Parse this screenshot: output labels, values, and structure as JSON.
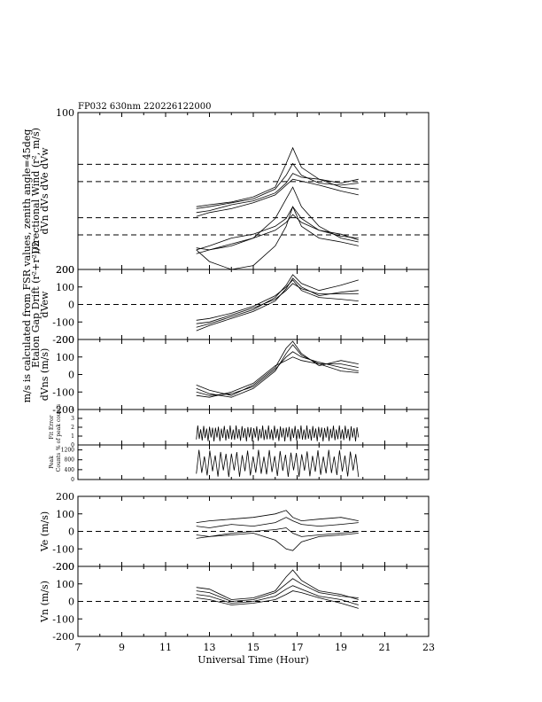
{
  "title": "FP032 630nm 220226122000",
  "chart_data": {
    "type": "line",
    "xlabel": "Universal Time (Hour)",
    "xlim": [
      7,
      23
    ],
    "x_ticks": [
      "7",
      "9",
      "11",
      "13",
      "15",
      "17",
      "19",
      "21",
      "23"
    ],
    "left_outer_label": "m/s is calculated from FSR values, zenith angle=45deg",
    "panels": [
      {
        "id": "dirwind",
        "ylabel": "dVn  dVs   dVe dVw",
        "ylabel2": "Directional Wind (r², m/s)",
        "y_ticks": [
          "100",
          "200"
        ],
        "dashed": [
          0.33,
          0.44,
          0.67,
          0.78
        ],
        "series": [
          {
            "x": [
              12.4,
              13,
              14,
              15,
              16,
              16.5,
              16.8,
              17.2,
              18,
              19,
              19.8
            ],
            "y": [
              -40,
              -35,
              -28,
              -15,
              10,
              70,
              110,
              60,
              30,
              10,
              5
            ]
          },
          {
            "x": [
              12.4,
              13,
              14,
              15,
              16,
              16.5,
              16.8,
              17.2,
              18,
              19,
              19.8
            ],
            "y": [
              -45,
              -40,
              -30,
              -20,
              5,
              40,
              70,
              40,
              20,
              15,
              20
            ]
          },
          {
            "x": [
              12.4,
              13,
              14,
              15,
              16,
              16.5,
              16.8,
              17.2,
              18,
              19,
              19.8
            ],
            "y": [
              -55,
              -50,
              -35,
              -25,
              -5,
              20,
              45,
              35,
              30,
              20,
              30
            ]
          },
          {
            "x": [
              12.4,
              13,
              14,
              15,
              16,
              16.5,
              16.8,
              17.2,
              18,
              19,
              19.8
            ],
            "y": [
              -65,
              -55,
              -45,
              -30,
              -10,
              15,
              30,
              25,
              15,
              0,
              -10
            ]
          },
          {
            "x": [
              12.4,
              13,
              14,
              15,
              16,
              16.5,
              16.8,
              17.2,
              18,
              19,
              19.8
            ],
            "y": [
              -150,
              -140,
              -120,
              -110,
              -90,
              -70,
              -40,
              -70,
              -100,
              -115,
              -120
            ]
          },
          {
            "x": [
              12.4,
              13,
              14,
              15,
              16,
              16.5,
              16.8,
              17.2,
              18,
              19,
              19.8
            ],
            "y": [
              -160,
              -150,
              -135,
              -120,
              -100,
              -80,
              -60,
              -80,
              -100,
              -110,
              -125
            ]
          },
          {
            "x": [
              12.4,
              13,
              14,
              15,
              16,
              16.5,
              16.8,
              17.2,
              18,
              19,
              19.8
            ],
            "y": [
              -145,
              -150,
              -140,
              -120,
              -70,
              -20,
              10,
              -40,
              -90,
              -120,
              -130
            ]
          },
          {
            "x": [
              12.4,
              13,
              14,
              15,
              16,
              16.5,
              16.8,
              17.2,
              18,
              19,
              19.8
            ],
            "y": [
              -150,
              -180,
              -200,
              -190,
              -140,
              -90,
              -40,
              -90,
              -120,
              -130,
              -140
            ]
          }
        ]
      },
      {
        "id": "dvew",
        "ylabel": "dVew",
        "ylabel2": "Etalon Gap Drift (r²+r²)/2",
        "ylim": [
          -200,
          200
        ],
        "y_ticks": [
          "200",
          "100",
          "0",
          "-100",
          "-200"
        ],
        "dashed": [
          0
        ],
        "series": [
          {
            "x": [
              12.4,
              13,
              14,
              15,
              16,
              16.5,
              16.8,
              17.2,
              18,
              19,
              19.8
            ],
            "y": [
              -150,
              -120,
              -80,
              -40,
              20,
              90,
              150,
              100,
              50,
              70,
              80
            ]
          },
          {
            "x": [
              12.4,
              13,
              14,
              15,
              16,
              16.5,
              16.8,
              17.2,
              18,
              19,
              19.8
            ],
            "y": [
              -130,
              -110,
              -70,
              -30,
              40,
              110,
              170,
              120,
              80,
              110,
              140
            ]
          },
          {
            "x": [
              12.4,
              13,
              14,
              15,
              16,
              16.5,
              16.8,
              17.2,
              18,
              19,
              19.8
            ],
            "y": [
              -110,
              -100,
              -60,
              -20,
              30,
              80,
              120,
              90,
              60,
              60,
              60
            ]
          },
          {
            "x": [
              12.4,
              13,
              14,
              15,
              16,
              16.5,
              16.8,
              17.2,
              18,
              19,
              19.8
            ],
            "y": [
              -90,
              -80,
              -50,
              -10,
              50,
              100,
              140,
              80,
              40,
              30,
              20
            ]
          }
        ]
      },
      {
        "id": "dvns",
        "ylabel": "dVns (m/s)",
        "ylim": [
          -200,
          200
        ],
        "y_ticks": [
          "200",
          "100",
          "0",
          "-100",
          "-200"
        ],
        "series": [
          {
            "x": [
              12.4,
              13,
              14,
              15,
              16,
              16.5,
              16.8,
              17.2,
              18,
              19,
              19.8
            ],
            "y": [
              -60,
              -90,
              -120,
              -60,
              40,
              150,
              190,
              120,
              50,
              80,
              60
            ]
          },
          {
            "x": [
              12.4,
              13,
              14,
              15,
              16,
              16.5,
              16.8,
              17.2,
              18,
              19,
              19.8
            ],
            "y": [
              -80,
              -110,
              -130,
              -80,
              20,
              120,
              170,
              110,
              60,
              60,
              40
            ]
          },
          {
            "x": [
              12.4,
              13,
              14,
              15,
              16,
              16.5,
              16.8,
              17.2,
              18,
              19,
              19.8
            ],
            "y": [
              -100,
              -120,
              -110,
              -70,
              30,
              100,
              130,
              100,
              70,
              40,
              20
            ]
          },
          {
            "x": [
              12.4,
              13,
              14,
              15,
              16,
              16.5,
              16.8,
              17.2,
              18,
              19,
              19.8
            ],
            "y": [
              -120,
              -130,
              -100,
              -50,
              50,
              80,
              100,
              80,
              60,
              20,
              10
            ]
          }
        ]
      },
      {
        "id": "fitrerror",
        "ylabel": "Fit Error",
        "ylabel2": "% of peak counts",
        "ylim": [
          0,
          4
        ],
        "y_ticks": [
          "4",
          "3",
          "2",
          "1",
          "0"
        ],
        "oscillation": {
          "x_start": 12.4,
          "x_end": 19.8,
          "center": 1.3,
          "amplitude": 0.9,
          "cycles": 55
        }
      },
      {
        "id": "peakcounts",
        "ylabel": "Peak",
        "ylabel2": "Counts",
        "ylim": [
          0,
          1400
        ],
        "y_ticks": [
          "1200",
          "800",
          "400",
          "0"
        ],
        "oscillation": {
          "x_start": 12.4,
          "x_end": 19.8,
          "center": 650,
          "amplitude": 550,
          "cycles": 30
        }
      },
      {
        "id": "ve",
        "ylabel": "Ve (m/s)",
        "ylim": [
          -200,
          200
        ],
        "y_ticks": [
          "200",
          "100",
          "0",
          "-100",
          "-200"
        ],
        "dashed": [
          0
        ],
        "series": [
          {
            "x": [
              12.4,
              13,
              14,
              15,
              16,
              16.5,
              16.8,
              17.2,
              18,
              19,
              19.8
            ],
            "y": [
              50,
              60,
              70,
              80,
              100,
              120,
              80,
              60,
              70,
              80,
              60
            ]
          },
          {
            "x": [
              12.4,
              13,
              14,
              15,
              16,
              16.5,
              16.8,
              17.2,
              18,
              19,
              19.8
            ],
            "y": [
              30,
              20,
              40,
              30,
              50,
              80,
              60,
              40,
              30,
              40,
              50
            ]
          },
          {
            "x": [
              12.4,
              13,
              14,
              15,
              16,
              16.5,
              16.8,
              17.2,
              18,
              19,
              19.8
            ],
            "y": [
              -20,
              -30,
              -10,
              0,
              10,
              20,
              -10,
              -30,
              -20,
              -10,
              0
            ]
          },
          {
            "x": [
              12.4,
              13,
              14,
              15,
              16,
              16.5,
              16.8,
              17.2,
              18,
              19,
              19.8
            ],
            "y": [
              -40,
              -30,
              -20,
              -10,
              -50,
              -100,
              -110,
              -60,
              -30,
              -20,
              -10
            ]
          }
        ]
      },
      {
        "id": "vn",
        "ylabel": "Vn (m/s)",
        "ylim": [
          -200,
          200
        ],
        "y_ticks": [
          "200",
          "100",
          "0",
          "-100",
          "-200"
        ],
        "dashed": [
          0
        ],
        "series": [
          {
            "x": [
              12.4,
              13,
              14,
              15,
              16,
              16.5,
              16.8,
              17.2,
              18,
              19,
              19.8
            ],
            "y": [
              80,
              70,
              10,
              20,
              60,
              140,
              180,
              120,
              60,
              40,
              10
            ]
          },
          {
            "x": [
              12.4,
              13,
              14,
              15,
              16,
              16.5,
              16.8,
              17.2,
              18,
              19,
              19.8
            ],
            "y": [
              60,
              50,
              0,
              10,
              50,
              100,
              130,
              100,
              50,
              30,
              20
            ]
          },
          {
            "x": [
              12.4,
              13,
              14,
              15,
              16,
              16.5,
              16.8,
              17.2,
              18,
              19,
              19.8
            ],
            "y": [
              40,
              30,
              -10,
              0,
              30,
              70,
              90,
              70,
              30,
              10,
              -20
            ]
          },
          {
            "x": [
              12.4,
              13,
              14,
              15,
              16,
              16.5,
              16.8,
              17.2,
              18,
              19,
              19.8
            ],
            "y": [
              20,
              10,
              -20,
              -10,
              10,
              40,
              60,
              50,
              20,
              -10,
              -40
            ]
          }
        ]
      }
    ]
  }
}
